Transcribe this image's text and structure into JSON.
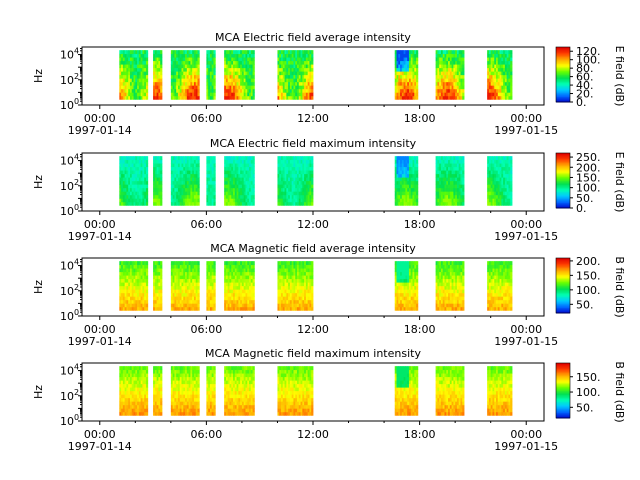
{
  "colorscale": [
    "#0000c8",
    "#0064ff",
    "#00c8ff",
    "#00ffb4",
    "#00e050",
    "#66ff00",
    "#ffff00",
    "#ffaa00",
    "#ff4000",
    "#e00000"
  ],
  "chart_data": [
    {
      "type": "heatmap",
      "title": "MCA  Electric field average intensity",
      "ylabel": "Hz",
      "y_ticks": [
        {
          "exp": 0,
          "base": "10",
          "sup": "0"
        },
        {
          "exp": 2,
          "base": "10",
          "sup": "2"
        },
        {
          "exp": 4,
          "base": "10",
          "sup": "4"
        }
      ],
      "y_exp_range": [
        0,
        4.6
      ],
      "x_ticks": [
        {
          "hour": 0,
          "time": "00:00",
          "date": "1997-01-14"
        },
        {
          "hour": 6,
          "time": "06:00",
          "date": ""
        },
        {
          "hour": 12,
          "time": "12:00",
          "date": ""
        },
        {
          "hour": 18,
          "time": "18:00",
          "date": ""
        },
        {
          "hour": 24,
          "time": "00:00",
          "date": "1997-01-15"
        }
      ],
      "x_range_hours": [
        -1,
        25
      ],
      "colorbar_label": "E field (dB)",
      "colorbar_ticks": [
        "0.",
        "20.",
        "40.",
        "60.",
        "80.",
        "100.",
        "120."
      ],
      "colorbar_range": [
        0,
        130
      ],
      "intensity_range_db": [
        10,
        125
      ],
      "data_freq_exp": [
        0.45,
        4.35
      ],
      "intervals": [
        [
          1.1,
          2.7
        ],
        [
          3.0,
          3.5
        ],
        [
          4.0,
          5.6
        ],
        [
          6.0,
          6.5
        ],
        [
          7.0,
          8.7
        ],
        [
          10.0,
          12.0
        ],
        [
          16.6,
          17.9
        ],
        [
          18.9,
          20.5
        ],
        [
          21.8,
          23.2
        ]
      ]
    },
    {
      "type": "heatmap",
      "title": "MCA  Electric field maximum intensity",
      "ylabel": "Hz",
      "y_ticks": [
        {
          "exp": 0,
          "base": "10",
          "sup": "0"
        },
        {
          "exp": 2,
          "base": "10",
          "sup": "2"
        },
        {
          "exp": 4,
          "base": "10",
          "sup": "4"
        }
      ],
      "y_exp_range": [
        0,
        4.6
      ],
      "x_ticks": [
        {
          "hour": 0,
          "time": "00:00",
          "date": "1997-01-14"
        },
        {
          "hour": 6,
          "time": "06:00",
          "date": ""
        },
        {
          "hour": 12,
          "time": "12:00",
          "date": ""
        },
        {
          "hour": 18,
          "time": "18:00",
          "date": ""
        },
        {
          "hour": 24,
          "time": "00:00",
          "date": "1997-01-15"
        }
      ],
      "x_range_hours": [
        -1,
        25
      ],
      "colorbar_label": "E field (dB)",
      "colorbar_ticks": [
        "0.",
        "50.",
        "100.",
        "150.",
        "200.",
        "250."
      ],
      "colorbar_range": [
        0,
        270
      ],
      "intensity_range_db": [
        40,
        160
      ],
      "data_freq_exp": [
        0.45,
        4.35
      ],
      "intervals": [
        [
          1.1,
          2.7
        ],
        [
          3.0,
          3.5
        ],
        [
          4.0,
          5.6
        ],
        [
          6.0,
          6.5
        ],
        [
          7.0,
          8.7
        ],
        [
          10.0,
          12.0
        ],
        [
          16.6,
          17.9
        ],
        [
          18.9,
          20.5
        ],
        [
          21.8,
          23.2
        ]
      ]
    },
    {
      "type": "heatmap",
      "title": "MCA  Magnetic field average intensity",
      "ylabel": "Hz",
      "y_ticks": [
        {
          "exp": 0,
          "base": "10",
          "sup": "0"
        },
        {
          "exp": 2,
          "base": "10",
          "sup": "2"
        },
        {
          "exp": 4,
          "base": "10",
          "sup": "4"
        }
      ],
      "y_exp_range": [
        0,
        4.6
      ],
      "x_ticks": [
        {
          "hour": 0,
          "time": "00:00",
          "date": "1997-01-14"
        },
        {
          "hour": 6,
          "time": "06:00",
          "date": ""
        },
        {
          "hour": 12,
          "time": "12:00",
          "date": ""
        },
        {
          "hour": 18,
          "time": "18:00",
          "date": ""
        },
        {
          "hour": 24,
          "time": "00:00",
          "date": "1997-01-15"
        }
      ],
      "x_range_hours": [
        -1,
        25
      ],
      "colorbar_label": "B field (dB)",
      "colorbar_ticks": [
        "50.",
        "100.",
        "150.",
        "200."
      ],
      "colorbar_range": [
        20,
        210
      ],
      "intensity_range_db": [
        90,
        180
      ],
      "data_freq_exp": [
        0.45,
        4.35
      ],
      "intervals": [
        [
          1.1,
          2.7
        ],
        [
          3.0,
          3.5
        ],
        [
          4.0,
          5.6
        ],
        [
          6.0,
          6.5
        ],
        [
          7.0,
          8.7
        ],
        [
          10.0,
          12.0
        ],
        [
          16.6,
          17.9
        ],
        [
          18.9,
          20.5
        ],
        [
          21.8,
          23.2
        ]
      ]
    },
    {
      "type": "heatmap",
      "title": "MCA  Magnetic field maximum intensity",
      "ylabel": "Hz",
      "y_ticks": [
        {
          "exp": 0,
          "base": "10",
          "sup": "0"
        },
        {
          "exp": 2,
          "base": "10",
          "sup": "2"
        },
        {
          "exp": 4,
          "base": "10",
          "sup": "4"
        }
      ],
      "y_exp_range": [
        0,
        4.6
      ],
      "x_ticks": [
        {
          "hour": 0,
          "time": "00:00",
          "date": "1997-01-14"
        },
        {
          "hour": 6,
          "time": "06:00",
          "date": ""
        },
        {
          "hour": 12,
          "time": "12:00",
          "date": ""
        },
        {
          "hour": 18,
          "time": "18:00",
          "date": ""
        },
        {
          "hour": 24,
          "time": "00:00",
          "date": "1997-01-15"
        }
      ],
      "x_range_hours": [
        -1,
        25
      ],
      "colorbar_label": "B field (dB)",
      "colorbar_ticks": [
        "50.",
        "100.",
        "150."
      ],
      "colorbar_range": [
        15,
        195
      ],
      "intensity_range_db": [
        90,
        170
      ],
      "data_freq_exp": [
        0.45,
        4.35
      ],
      "intervals": [
        [
          1.1,
          2.7
        ],
        [
          3.0,
          3.5
        ],
        [
          4.0,
          5.6
        ],
        [
          6.0,
          6.5
        ],
        [
          7.0,
          8.7
        ],
        [
          10.0,
          12.0
        ],
        [
          16.6,
          17.9
        ],
        [
          18.9,
          20.5
        ],
        [
          21.8,
          23.2
        ]
      ]
    }
  ]
}
